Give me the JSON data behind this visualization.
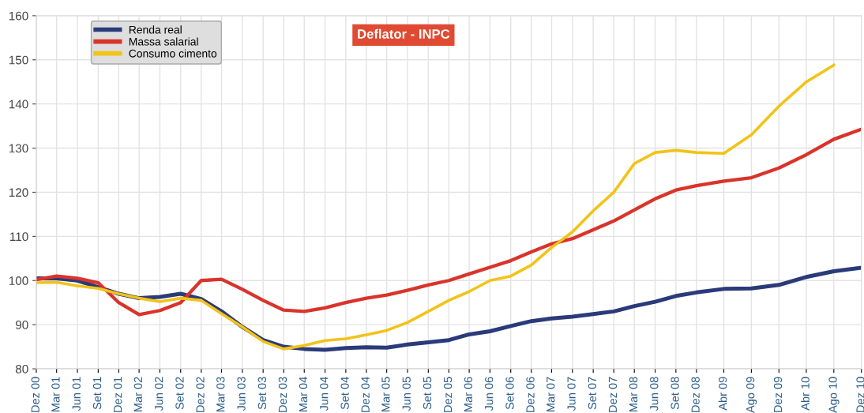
{
  "chart_data": {
    "type": "line",
    "title": "Deflator - INPC",
    "x": [
      "2000-12",
      "2001-03",
      "2001-06",
      "2001-09",
      "2001-12",
      "2002-03",
      "2002-06",
      "2002-09",
      "2002-12",
      "2003-03",
      "2003-06",
      "2003-09",
      "2003-12",
      "2004-03",
      "2004-06",
      "2004-09",
      "2004-12",
      "2005-03",
      "2005-06",
      "2005-09",
      "2005-12",
      "2006-03",
      "2006-06",
      "2006-09",
      "2006-12",
      "2007-03",
      "2007-06",
      "2007-09",
      "2007-12",
      "2008-03",
      "2008-06",
      "2008-09",
      "2008-12",
      "2009-04",
      "2009-08",
      "2009-12",
      "2010-04",
      "2010-08",
      "2010-12"
    ],
    "series": [
      {
        "name": "Renda real",
        "color": "#2b3a7a",
        "values": [
          100.5,
          100.5,
          100,
          98.5,
          97,
          96,
          96.3,
          97,
          95.8,
          93,
          89.5,
          86.5,
          85,
          84.5,
          84.3,
          84.7,
          84.9,
          84.8,
          85.5,
          86,
          86.5,
          87.8,
          88.5,
          89.7,
          90.8,
          91.4,
          91.8,
          92.4,
          93,
          94.2,
          95.2,
          96.5,
          97.3,
          98.1,
          98.2,
          99,
          100.8,
          102.1,
          102.9
        ]
      },
      {
        "name": "Massa salarial",
        "color": "#d9342b",
        "values": [
          100.2,
          101,
          100.5,
          99.5,
          95,
          92.3,
          93.2,
          95,
          100,
          100.3,
          98,
          95.5,
          93.3,
          93,
          93.8,
          95,
          96,
          96.7,
          97.8,
          99,
          100,
          101.5,
          103,
          104.5,
          106.5,
          108.3,
          109.5,
          111.5,
          113.5,
          116,
          118.5,
          120.5,
          121.5,
          122.5,
          123.3,
          125.5,
          128.5,
          132,
          134.3
        ]
      },
      {
        "name": "Consumo cimento",
        "color": "#f2c318",
        "values": [
          99.5,
          99.6,
          98.8,
          98.2,
          97,
          96,
          95.2,
          96,
          95.5,
          92.5,
          89.5,
          86.2,
          84.5,
          85.3,
          86.4,
          86.8,
          87.7,
          88.7,
          90.5,
          93,
          95.5,
          97.5,
          100,
          101,
          103.5,
          107.5,
          111,
          115.8,
          120,
          126.5,
          129,
          129.5,
          129,
          128.8,
          133,
          139.5,
          145,
          148.8,
          null
        ]
      }
    ],
    "xlim": [
      "2000-12",
      "2010-12"
    ],
    "xticks": [
      {
        "value": "2000-12",
        "label": "Dez 00"
      },
      {
        "value": "2001-03",
        "label": "Mar 01"
      },
      {
        "value": "2001-06",
        "label": "Jun 01"
      },
      {
        "value": "2001-09",
        "label": "Set 01"
      },
      {
        "value": "2001-12",
        "label": "Dez 01"
      },
      {
        "value": "2002-03",
        "label": "Mar 02"
      },
      {
        "value": "2002-06",
        "label": "Jun 02"
      },
      {
        "value": "2002-09",
        "label": "Set 02"
      },
      {
        "value": "2002-12",
        "label": "Dez 02"
      },
      {
        "value": "2003-03",
        "label": "Mar 03"
      },
      {
        "value": "2003-06",
        "label": "Jun 03"
      },
      {
        "value": "2003-09",
        "label": "Set 03"
      },
      {
        "value": "2003-12",
        "label": "Dez 03"
      },
      {
        "value": "2004-03",
        "label": "Mar 04"
      },
      {
        "value": "2004-06",
        "label": "Jun 04"
      },
      {
        "value": "2004-09",
        "label": "Set 04"
      },
      {
        "value": "2004-12",
        "label": "Dez 04"
      },
      {
        "value": "2005-03",
        "label": "Mar 05"
      },
      {
        "value": "2005-06",
        "label": "Jun 05"
      },
      {
        "value": "2005-09",
        "label": "Set 05"
      },
      {
        "value": "2005-12",
        "label": "Dez 05"
      },
      {
        "value": "2006-03",
        "label": "Mar 06"
      },
      {
        "value": "2006-06",
        "label": "Jun 06"
      },
      {
        "value": "2006-09",
        "label": "Set 06"
      },
      {
        "value": "2006-12",
        "label": "Dez 06"
      },
      {
        "value": "2007-03",
        "label": "Mar 07"
      },
      {
        "value": "2007-06",
        "label": "Jun 07"
      },
      {
        "value": "2007-09",
        "label": "Set 07"
      },
      {
        "value": "2007-12",
        "label": "Dez 07"
      },
      {
        "value": "2008-03",
        "label": "Mar 08"
      },
      {
        "value": "2008-06",
        "label": "Jun 08"
      },
      {
        "value": "2008-09",
        "label": "Set 08"
      },
      {
        "value": "2008-12",
        "label": "Dez 08"
      },
      {
        "value": "2009-04",
        "label": "Abr 09"
      },
      {
        "value": "2009-08",
        "label": "Ago 09"
      },
      {
        "value": "2009-12",
        "label": "Dez 09"
      },
      {
        "value": "2010-04",
        "label": "Abr 10"
      },
      {
        "value": "2010-08",
        "label": "Ago 10"
      },
      {
        "value": "2010-12",
        "label": "Dez 10"
      }
    ],
    "ylim": [
      80,
      160
    ],
    "yticks": [
      80,
      90,
      100,
      110,
      120,
      130,
      140,
      150,
      160
    ],
    "grid": true,
    "legend": "top left",
    "marker": "none",
    "line_style": "solid"
  }
}
